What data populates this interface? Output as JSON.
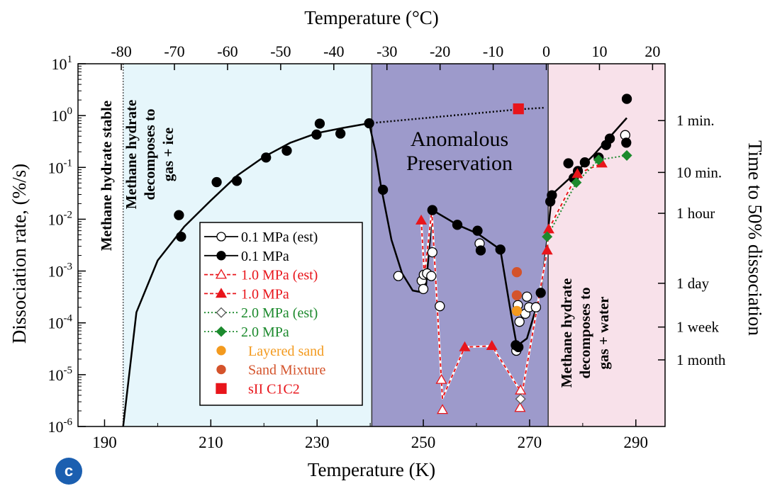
{
  "chart_data": {
    "type": "scatter",
    "panel_label": "c",
    "x_axis": {
      "label": "Temperature (K)",
      "range": [
        185,
        295.5
      ],
      "ticks": [
        190,
        210,
        230,
        250,
        270,
        290
      ]
    },
    "x_top_axis": {
      "label": "Temperature (°C)",
      "ticks": [
        "-80",
        "-70",
        "-60",
        "-50",
        "-40",
        "-30",
        "-20",
        "-10",
        "0",
        "10",
        "20"
      ],
      "tick_values_celsius": [
        -80,
        -70,
        -60,
        -50,
        -40,
        -30,
        -20,
        -10,
        0,
        10,
        20
      ]
    },
    "y_axis": {
      "label": "Dissociation rate,  (%/s)",
      "scale": "log",
      "range": [
        1e-06,
        10
      ],
      "tick_exponents": [
        1,
        0,
        -1,
        -2,
        -3,
        -4,
        -5,
        -6
      ],
      "tick_base": "10"
    },
    "y_right_axis": {
      "label": "Time to 50% dissociation",
      "ticks": [
        {
          "label": "1 min.",
          "rate": 0.8
        },
        {
          "label": "10 min.",
          "rate": 0.08
        },
        {
          "label": "1 hour",
          "rate": 0.013
        },
        {
          "label": "1 day",
          "rate": 0.00058
        },
        {
          "label": "1 week",
          "rate": 8.3e-05
        },
        {
          "label": "1 month",
          "rate": 1.93e-05
        }
      ]
    },
    "regions": [
      {
        "x0": 193.5,
        "x1": 240.3,
        "color": "#e6f6fb",
        "label_lines": [
          "Methane hydrate",
          "decomposes to",
          "gas + ice"
        ],
        "label_color": "#000000"
      },
      {
        "x0": 240.3,
        "x1": 273.5,
        "color": "#9d9acb",
        "label_lines": [
          "Anomalous",
          "Preservation"
        ],
        "label_color": "#000000"
      },
      {
        "x0": 273.5,
        "x1": 295.5,
        "color": "#f8e1ea",
        "label_lines": [
          "Methane hydrate",
          "decomposes to",
          "gas + water"
        ],
        "label_color": "#000000"
      }
    ],
    "side_label": "Methane hydrate stable",
    "series": [
      {
        "name": "0.1 MPa (est)",
        "color": "#000000",
        "marker": "circle-open",
        "line": "solid",
        "points": [
          [
            245.3,
            0.0008
          ],
          [
            249.7,
            0.00065
          ],
          [
            250.1,
            0.00085
          ],
          [
            250.0,
            0.00045
          ],
          [
            250.7,
            0.0009
          ],
          [
            251.5,
            0.0008
          ],
          [
            251.7,
            0.0023
          ],
          [
            253.1,
            0.00021
          ],
          [
            260.6,
            0.0034
          ],
          [
            267.5,
            2.9e-05
          ],
          [
            267.6,
            0.00017
          ],
          [
            267.8,
            0.00022
          ],
          [
            268.1,
            0.000105
          ],
          [
            269.2,
            0.00015
          ],
          [
            269.5,
            0.00032
          ],
          [
            269.9,
            0.0002
          ],
          [
            271.2,
            0.0002
          ],
          [
            288.0,
            0.42
          ]
        ]
      },
      {
        "name": "0.1 MPa",
        "color": "#000000",
        "marker": "circle-filled",
        "line": "solid",
        "points": [
          [
            204.0,
            0.012
          ],
          [
            204.4,
            0.0046
          ],
          [
            211.1,
            0.052
          ],
          [
            214.9,
            0.055
          ],
          [
            220.4,
            0.155
          ],
          [
            224.3,
            0.21
          ],
          [
            229.9,
            0.43
          ],
          [
            230.5,
            0.7
          ],
          [
            234.4,
            0.45
          ],
          [
            239.8,
            0.71
          ],
          [
            242.4,
            0.037
          ],
          [
            251.7,
            0.015
          ],
          [
            256.4,
            0.0078
          ],
          [
            260.2,
            0.006
          ],
          [
            260.8,
            0.0025
          ],
          [
            264.5,
            0.0026
          ],
          [
            267.4,
            3.7e-05
          ],
          [
            267.9,
            3.4e-05
          ],
          [
            272.1,
            0.00038
          ],
          [
            273.9,
            0.022
          ],
          [
            274.2,
            0.029
          ],
          [
            277.3,
            0.12
          ],
          [
            278.3,
            0.062
          ],
          [
            279.1,
            0.085
          ],
          [
            280.4,
            0.125
          ],
          [
            283.0,
            0.155
          ],
          [
            284.4,
            0.27
          ],
          [
            285.1,
            0.36
          ],
          [
            288.3,
            2.1
          ],
          [
            288.2,
            0.3
          ]
        ]
      },
      {
        "name": "1.0 MPa (est)",
        "color": "#e8151b",
        "marker": "triangle-open",
        "line": "dashed",
        "points": [
          [
            253.6,
            2.1e-06
          ],
          [
            268.2,
            2.3e-06
          ],
          [
            268.3,
            5e-06
          ],
          [
            253.4,
            8e-06
          ]
        ]
      },
      {
        "name": "1.0 MPa",
        "color": "#e8151b",
        "marker": "triangle-filled",
        "line": "dashed",
        "points": [
          [
            249.6,
            0.0095
          ],
          [
            257.8,
            3.4e-05
          ],
          [
            262.9,
            3.6e-05
          ],
          [
            273.3,
            0.0025
          ],
          [
            273.6,
            0.0064
          ],
          [
            279.0,
            0.075
          ],
          [
            283.6,
            0.12
          ]
        ]
      },
      {
        "name": "2.0 MPa (est)",
        "color": "#1c8a2d",
        "marker": "diamond-open",
        "line": "dotted",
        "points": [
          [
            268.3,
            3.4e-06
          ]
        ]
      },
      {
        "name": "2.0 MPa",
        "color": "#1c8a2d",
        "marker": "diamond-filled",
        "line": "dotted",
        "points": [
          [
            273.3,
            0.0046
          ],
          [
            278.8,
            0.051
          ],
          [
            283.0,
            0.14
          ],
          [
            288.3,
            0.17
          ]
        ]
      },
      {
        "name": "Layered sand",
        "color": "#f39a1e",
        "marker": "circle-filled",
        "line": "none",
        "points": [
          [
            267.6,
            0.00017
          ]
        ]
      },
      {
        "name": "Sand Mixture",
        "color": "#d4532b",
        "marker": "circle-filled",
        "line": "none",
        "points": [
          [
            267.6,
            0.00095
          ],
          [
            267.6,
            0.00034
          ]
        ]
      },
      {
        "name": "sII C1C2",
        "color": "#e8151b",
        "marker": "square-filled",
        "line": "none",
        "points": [
          [
            267.9,
            1.35
          ]
        ]
      }
    ],
    "curves": [
      {
        "style": "solid-black",
        "points": [
          [
            193.5,
            1e-06
          ],
          [
            196,
            0.00016
          ],
          [
            200,
            0.0016
          ],
          [
            205,
            0.0072
          ],
          [
            210,
            0.023
          ],
          [
            215,
            0.07
          ],
          [
            220,
            0.16
          ],
          [
            225,
            0.3
          ],
          [
            230,
            0.46
          ],
          [
            235,
            0.58
          ],
          [
            239.8,
            0.71
          ],
          [
            241,
            0.2
          ],
          [
            242,
            0.045
          ],
          [
            244,
            0.004
          ],
          [
            246,
            0.0009
          ],
          [
            248,
            0.00042
          ],
          [
            249.7,
            0.00039
          ],
          [
            250.5,
            0.0005
          ],
          [
            251.7,
            0.015
          ],
          [
            256.4,
            0.0078
          ],
          [
            260.2,
            0.0053
          ],
          [
            264.5,
            0.0026
          ],
          [
            266.5,
            0.00015
          ],
          [
            267.6,
            3.6e-05
          ],
          [
            269.5,
            5e-05
          ],
          [
            272.1,
            0.00038
          ],
          [
            273.3,
            0.004
          ],
          [
            274.2,
            0.03
          ],
          [
            278,
            0.068
          ],
          [
            282,
            0.17
          ],
          [
            288.3,
            0.9
          ]
        ]
      },
      {
        "style": "dotted-black",
        "points": [
          [
            239.8,
            0.71
          ],
          [
            268,
            1.32
          ],
          [
            273,
            1.42
          ]
        ]
      },
      {
        "style": "dashed-red-white",
        "points": [
          [
            249.6,
            0.0095
          ],
          [
            250.2,
            0.0008
          ],
          [
            251.6,
            0.0145
          ],
          [
            253.4,
            8e-06
          ],
          [
            253.6,
            3.5e-06
          ],
          [
            257.8,
            3.4e-05
          ],
          [
            262.9,
            3.6e-05
          ],
          [
            268.2,
            5e-06
          ],
          [
            268.3,
            3e-06
          ],
          [
            273.3,
            0.0025
          ],
          [
            273.6,
            0.0064
          ],
          [
            279.0,
            0.075
          ],
          [
            283.6,
            0.12
          ]
        ]
      },
      {
        "style": "dotted-green",
        "points": [
          [
            273.3,
            0.0046
          ],
          [
            278.8,
            0.051
          ],
          [
            283.0,
            0.14
          ],
          [
            288.3,
            0.17
          ]
        ]
      }
    ]
  }
}
